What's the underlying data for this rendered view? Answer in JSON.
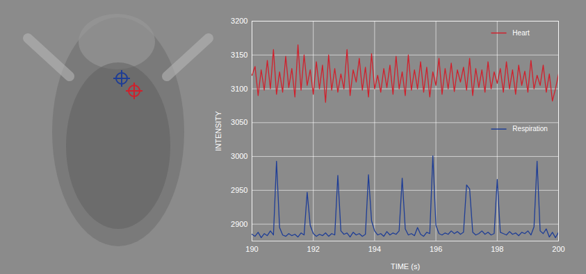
{
  "chart_data": {
    "type": "line",
    "xlabel": "TIME (s)",
    "ylabel": "INTENSITY",
    "x": [
      190,
      190.1,
      190.2,
      190.3,
      190.4,
      190.5,
      190.6,
      190.7,
      190.8,
      190.9,
      191,
      191.1,
      191.2,
      191.3,
      191.4,
      191.5,
      191.6,
      191.7,
      191.8,
      191.9,
      192,
      192.1,
      192.2,
      192.3,
      192.4,
      192.5,
      192.6,
      192.7,
      192.8,
      192.9,
      193,
      193.1,
      193.2,
      193.3,
      193.4,
      193.5,
      193.6,
      193.7,
      193.8,
      193.9,
      194,
      194.1,
      194.2,
      194.3,
      194.4,
      194.5,
      194.6,
      194.7,
      194.8,
      194.9,
      195,
      195.1,
      195.2,
      195.3,
      195.4,
      195.5,
      195.6,
      195.7,
      195.8,
      195.9,
      196,
      196.1,
      196.2,
      196.3,
      196.4,
      196.5,
      196.6,
      196.7,
      196.8,
      196.9,
      197,
      197.1,
      197.2,
      197.3,
      197.4,
      197.5,
      197.6,
      197.7,
      197.8,
      197.9,
      198,
      198.1,
      198.2,
      198.3,
      198.4,
      198.5,
      198.6,
      198.7,
      198.8,
      198.9,
      199,
      199.1,
      199.2,
      199.3,
      199.4,
      199.5,
      199.6,
      199.7,
      199.8,
      199.9,
      200
    ],
    "series": [
      {
        "name": "Heart",
        "color": "#d11f2b",
        "values": [
          3120,
          3133,
          3090,
          3128,
          3098,
          3142,
          3100,
          3158,
          3092,
          3125,
          3095,
          3148,
          3102,
          3130,
          3088,
          3165,
          3098,
          3150,
          3105,
          3128,
          3092,
          3140,
          3100,
          3135,
          3080,
          3150,
          3098,
          3130,
          3095,
          3122,
          3100,
          3158,
          3090,
          3128,
          3110,
          3145,
          3098,
          3132,
          3088,
          3152,
          3100,
          3120,
          3095,
          3130,
          3102,
          3135,
          3092,
          3148,
          3100,
          3125,
          3090,
          3150,
          3098,
          3128,
          3100,
          3140,
          3095,
          3132,
          3088,
          3125,
          3105,
          3145,
          3092,
          3130,
          3100,
          3138,
          3096,
          3128,
          3110,
          3132,
          3098,
          3145,
          3090,
          3130,
          3102,
          3128,
          3095,
          3140,
          3100,
          3125,
          3108,
          3130,
          3095,
          3140,
          3100,
          3128,
          3092,
          3135,
          3105,
          3126,
          3095,
          3142,
          3100,
          3120,
          3105,
          3135,
          3095,
          3122,
          3082,
          3100,
          3122
        ]
      },
      {
        "name": "Respiration",
        "color": "#1e3d96",
        "values": [
          2885,
          2882,
          2888,
          2880,
          2886,
          2883,
          2890,
          2884,
          2993,
          2895,
          2884,
          2882,
          2886,
          2883,
          2885,
          2881,
          2887,
          2884,
          2947,
          2898,
          2886,
          2882,
          2885,
          2883,
          2887,
          2882,
          2886,
          2884,
          2972,
          2890,
          2885,
          2887,
          2881,
          2888,
          2884,
          2886,
          2882,
          2885,
          2973,
          2905,
          2890,
          2884,
          2886,
          2882,
          2889,
          2884,
          2887,
          2885,
          2890,
          2968,
          2893,
          2884,
          2886,
          2883,
          2895,
          2885,
          2882,
          2888,
          2886,
          3001,
          2898,
          2886,
          2884,
          2887,
          2885,
          2890,
          2886,
          2889,
          2885,
          2888,
          2958,
          2952,
          2888,
          2884,
          2886,
          2890,
          2885,
          2888,
          2884,
          2886,
          2966,
          2888,
          2886,
          2884,
          2889,
          2885,
          2887,
          2883,
          2888,
          2886,
          2890,
          2884,
          2896,
          2993,
          2890,
          2886,
          2893,
          2881,
          2888,
          2880,
          2888
        ]
      }
    ],
    "xlim": [
      190,
      200
    ],
    "ylim": [
      2875,
      3200
    ],
    "xticks": [
      190,
      192,
      194,
      196,
      198,
      200
    ],
    "yticks": [
      2900,
      2950,
      3000,
      3050,
      3100,
      3150,
      3200
    ],
    "grid": true,
    "legend": "right"
  }
}
